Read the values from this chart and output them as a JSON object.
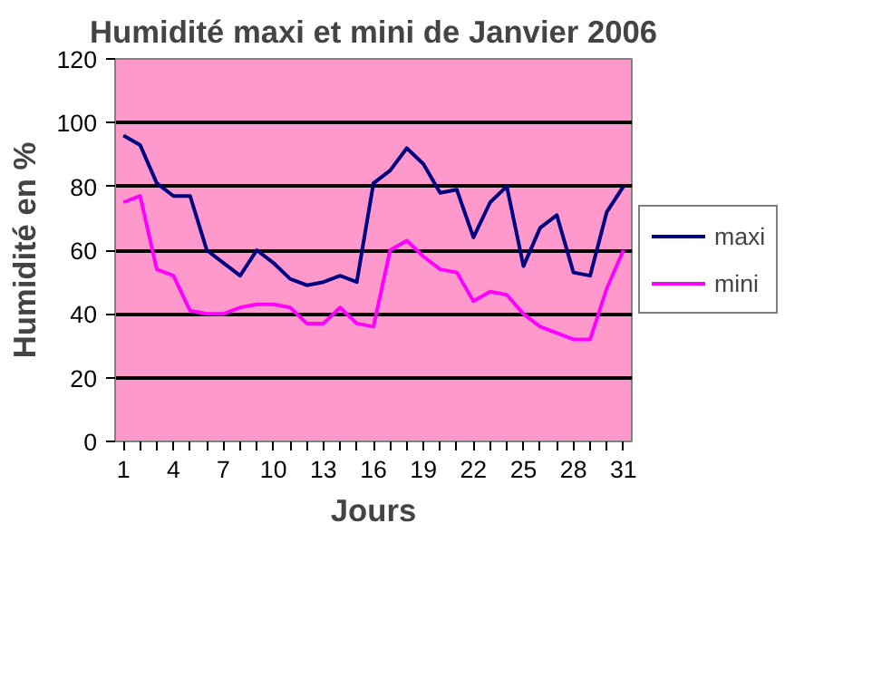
{
  "chart_data": {
    "type": "line",
    "title": "Humidité maxi et mini de Janvier 2006",
    "xlabel": "Jours",
    "ylabel": "Humidité en %",
    "x": [
      1,
      2,
      3,
      4,
      5,
      6,
      7,
      8,
      9,
      10,
      11,
      12,
      13,
      14,
      15,
      16,
      17,
      18,
      19,
      20,
      21,
      22,
      23,
      24,
      25,
      26,
      27,
      28,
      29,
      30,
      31
    ],
    "series": [
      {
        "name": "maxi",
        "color": "#000080",
        "values": [
          96,
          93,
          81,
          77,
          77,
          60,
          56,
          52,
          60,
          56,
          51,
          49,
          50,
          52,
          50,
          81,
          85,
          92,
          87,
          78,
          79,
          64,
          75,
          80,
          55,
          67,
          71,
          53,
          52,
          72,
          80
        ]
      },
      {
        "name": "mini",
        "color": "#ff00ff",
        "values": [
          75,
          77,
          54,
          52,
          41,
          40,
          40,
          42,
          43,
          43,
          42,
          37,
          37,
          42,
          37,
          36,
          60,
          63,
          58,
          54,
          53,
          44,
          47,
          46,
          40,
          36,
          34,
          32,
          32,
          48,
          60
        ]
      }
    ],
    "xlim": [
      0.5,
      31.5
    ],
    "xticks": [
      1,
      4,
      7,
      10,
      13,
      16,
      19,
      22,
      25,
      28,
      31
    ],
    "ylim": [
      0,
      120
    ],
    "yticks": [
      0,
      20,
      40,
      60,
      80,
      100,
      120
    ],
    "grid": "y",
    "legend": "right",
    "marker": "none",
    "line_style": "solid"
  }
}
